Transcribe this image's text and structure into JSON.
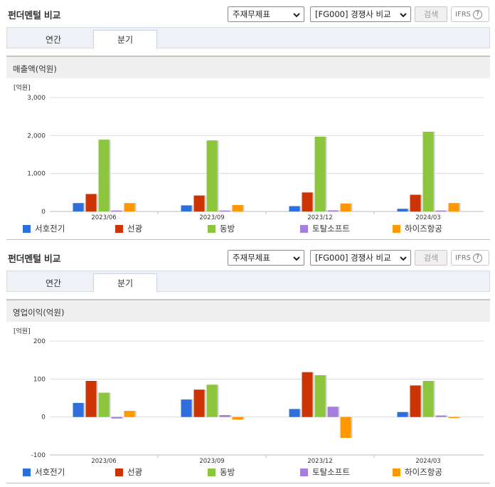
{
  "panels": [
    {
      "title": "펀더멘털 비교",
      "select_statement": "주재무제표",
      "select_compare": "[FG000] 경쟁사 비교",
      "search_label": "검색",
      "ifrs_label": "IFRS",
      "help_glyph": "?",
      "tabs": [
        {
          "label": "연간",
          "active": false
        },
        {
          "label": "분기",
          "active": true
        }
      ],
      "subtitle": "매출액(억원)",
      "chart_data": {
        "type": "bar",
        "unit_label": "[억원]",
        "categories": [
          "2023/06",
          "2023/09",
          "2023/12",
          "2024/03"
        ],
        "ylim": [
          0,
          3000
        ],
        "yticks": [
          0,
          1000,
          2000,
          3000
        ],
        "ytick_labels": [
          "0",
          "1,000",
          "2,000",
          "3,000"
        ],
        "grid": true,
        "series": [
          {
            "name": "서호전기",
            "color": "#2c6fdd",
            "values": [
              220,
              160,
              140,
              70
            ]
          },
          {
            "name": "선광",
            "color": "#cc3300",
            "values": [
              460,
              420,
              500,
              440
            ]
          },
          {
            "name": "동방",
            "color": "#8cc63f",
            "values": [
              1890,
              1870,
              1970,
              2100
            ]
          },
          {
            "name": "토탈소프트",
            "color": "#a77ee0",
            "values": [
              25,
              25,
              30,
              25
            ]
          },
          {
            "name": "하이즈항공",
            "color": "#ff9900",
            "values": [
              220,
              170,
              210,
              220
            ]
          }
        ]
      }
    },
    {
      "title": "펀더멘털 비교",
      "select_statement": "주재무제표",
      "select_compare": "[FG000] 경쟁사 비교",
      "search_label": "검색",
      "ifrs_label": "IFRS",
      "help_glyph": "?",
      "tabs": [
        {
          "label": "연간",
          "active": false
        },
        {
          "label": "분기",
          "active": true
        }
      ],
      "subtitle": "영업이익(억원)",
      "chart_data": {
        "type": "bar",
        "unit_label": "[억원]",
        "categories": [
          "2023/06",
          "2023/09",
          "2023/12",
          "2024/03"
        ],
        "ylim": [
          -100,
          200
        ],
        "yticks": [
          -100,
          0,
          100,
          200
        ],
        "ytick_labels": [
          "-100",
          "0",
          "100",
          "200"
        ],
        "grid": true,
        "series": [
          {
            "name": "서호전기",
            "color": "#2c6fdd",
            "values": [
              37,
              46,
              21,
              13
            ]
          },
          {
            "name": "선광",
            "color": "#cc3300",
            "values": [
              95,
              72,
              118,
              83
            ]
          },
          {
            "name": "동방",
            "color": "#8cc63f",
            "values": [
              64,
              85,
              110,
              95
            ]
          },
          {
            "name": "토탈소프트",
            "color": "#a77ee0",
            "values": [
              -4,
              5,
              27,
              4
            ]
          },
          {
            "name": "하이즈항공",
            "color": "#ff9900",
            "values": [
              16,
              -7,
              -55,
              0
            ]
          }
        ]
      }
    }
  ]
}
